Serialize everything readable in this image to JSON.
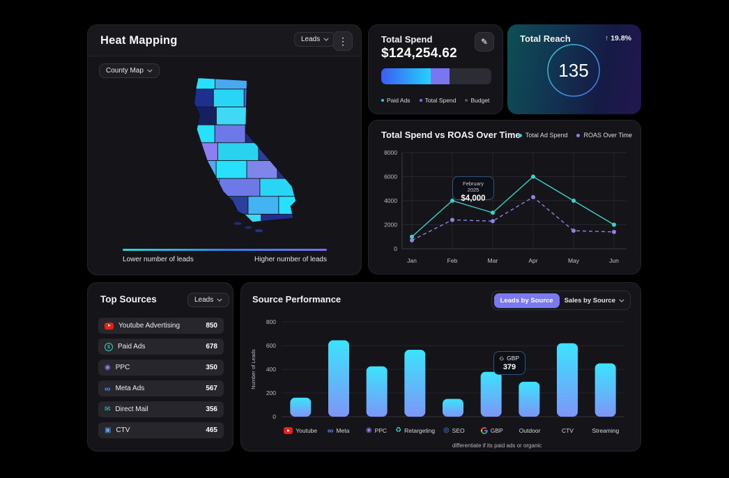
{
  "icons": {
    "kebab_menu": "⋮",
    "edit_pencil": "✎",
    "arrow_up": "↑"
  },
  "heat_mapping": {
    "title": "Heat Mapping",
    "metric_dropdown": "Leads",
    "map_type_dropdown": "County Map",
    "legend_low": "Lower number of leads",
    "legend_high": "Higher number of leads",
    "gradient": [
      "#2fd9d0",
      "#2e86f2",
      "#7b6cf0"
    ],
    "county_colors": [
      "#27e0fc",
      "#4aa8f0",
      "#7f86ea",
      "#1f2f8f",
      "#29d5f4",
      "#5560d0",
      "#8d7ff2",
      "#16205f",
      "#3fd9f6",
      "#3b6fe2",
      "#27e0fc",
      "#6e79e8",
      "#1c2a80",
      "#44b3f2",
      "#8d7ff2",
      "#2bd2f0",
      "#2a3f9e",
      "#5aa7f5",
      "#27e0fc",
      "#7f86ea",
      "#223488",
      "#36c8f2",
      "#6e79e8",
      "#29d5f4",
      "#8d7ff2",
      "#2a3f9e",
      "#44b3f2",
      "#27e0fc",
      "#5560d0",
      "#3fd9f6",
      "#1f2f8f",
      "#29d5f4"
    ]
  },
  "total_spend": {
    "title": "Total Spend",
    "value": "$124,254.62",
    "segments": [
      {
        "label": "Paid Ads",
        "pct": 45,
        "gradient": [
          "#3d5bf5",
          "#23d3fc"
        ]
      },
      {
        "label": "Total Spend",
        "pct": 17,
        "color": "#7a76f2"
      },
      {
        "label": "Budget",
        "pct": 38,
        "color": "#2c2c34"
      }
    ],
    "legend": [
      {
        "label": "Paid Ads",
        "color": "#30c9f6"
      },
      {
        "label": "Total Spend",
        "color": "#7a76f2"
      },
      {
        "label": "Budget",
        "color": "#55555e"
      }
    ]
  },
  "total_reach": {
    "title": "Total Reach",
    "value": "135",
    "delta": "19.8%",
    "delta_direction": "up"
  },
  "top_sources": {
    "title": "Top Sources",
    "dropdown": "Leads",
    "items": [
      {
        "label": "Youtube Advertising",
        "value": "850",
        "icon": "youtube"
      },
      {
        "label": "Paid Ads",
        "value": "678",
        "icon": "dollar"
      },
      {
        "label": "PPC",
        "value": "350",
        "icon": "ppc"
      },
      {
        "label": "Meta Ads",
        "value": "567",
        "icon": "meta"
      },
      {
        "label": "Direct Mail",
        "value": "356",
        "icon": "mail"
      },
      {
        "label": "CTV",
        "value": "465",
        "icon": "ctv"
      }
    ]
  },
  "source_performance": {
    "title": "Source Performance",
    "toggle_active": "Leads by Source",
    "toggle_inactive": "Sales by Source",
    "footer_note": "differentiate if its paid ads or organic"
  },
  "chart_data": [
    {
      "type": "line",
      "title": "Total Spend vs ROAS Over Time",
      "x": [
        "Jan",
        "Feb",
        "Mar",
        "Apr",
        "May",
        "Jun"
      ],
      "series": [
        {
          "name": "Total Ad Spend",
          "color": "#3dd1c8",
          "style": "solid",
          "values": [
            1000,
            4000,
            3000,
            6000,
            4000,
            2000
          ]
        },
        {
          "name": "ROAS Over Time",
          "color": "#8a86e8",
          "style": "dashed",
          "values": [
            700,
            2400,
            2300,
            4300,
            1500,
            1400
          ]
        }
      ],
      "ylim": [
        0,
        8000
      ],
      "yticks": [
        0,
        2000,
        4000,
        6000,
        8000
      ],
      "grid": true,
      "legend_position": "top-right",
      "tooltip": {
        "x": "Feb",
        "title": "February 2025",
        "value": "$4,000"
      }
    },
    {
      "type": "bar",
      "title": "Source Performance",
      "categories": [
        "Youtube",
        "Meta",
        "PPC",
        "Retargeting",
        "SEO",
        "GBP",
        "Outdoor",
        "CTV",
        "Streaming"
      ],
      "category_icons": [
        "youtube",
        "meta",
        "ppc",
        "retargeting",
        "seo",
        "google",
        "",
        "",
        ""
      ],
      "values": [
        160,
        645,
        425,
        565,
        150,
        379,
        295,
        620,
        450
      ],
      "xlabel": "",
      "ylabel": "Number of Leads",
      "ylim": [
        0,
        800
      ],
      "yticks": [
        0,
        200,
        400,
        600,
        800
      ],
      "grid": true,
      "bar_gradient": [
        "#3be3fc",
        "#7e96f8"
      ],
      "tooltip": {
        "category": "GBP",
        "label": "GBP",
        "value": "379"
      }
    }
  ]
}
